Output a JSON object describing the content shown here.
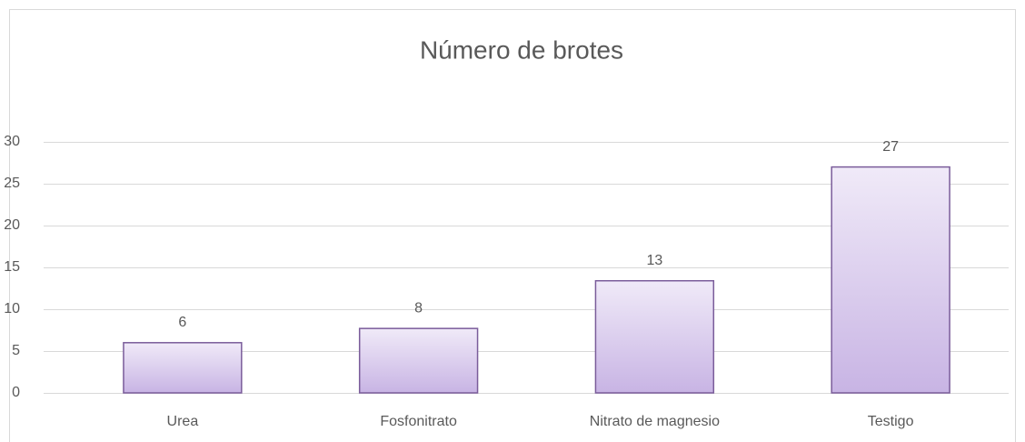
{
  "chart_data": {
    "type": "bar",
    "title": "Número de brotes",
    "categories": [
      "Urea",
      "Fosfonitrato",
      "Nitrato de magnesio",
      "Testigo"
    ],
    "values": [
      6,
      7.7,
      13.4,
      27
    ],
    "value_labels": [
      "6",
      "8",
      "13",
      "27"
    ],
    "color": "#c8b4e4",
    "ylim": [
      0,
      30
    ],
    "yticks": [
      0,
      5,
      10,
      15,
      20,
      25,
      30
    ],
    "grid": true
  }
}
